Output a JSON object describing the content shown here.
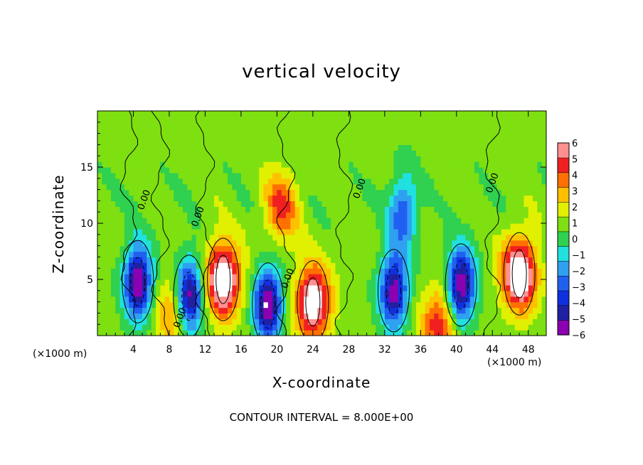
{
  "chart_data": {
    "type": "heatmap",
    "title": "vertical velocity",
    "xlabel": "X-coordinate",
    "ylabel": "Z-coordinate",
    "x_unit_left": "(×1000 m)",
    "x_unit_right": "(×1000 m)",
    "footer": "CONTOUR INTERVAL = 8.000E+00",
    "xlim": [
      0,
      50
    ],
    "ylim": [
      0,
      20
    ],
    "x_ticks": [
      "4",
      "8",
      "12",
      "16",
      "20",
      "24",
      "28",
      "32",
      "36",
      "40",
      "44",
      "48"
    ],
    "y_ticks": [
      "5",
      "10",
      "15"
    ],
    "colorbar": {
      "ticks": [
        "6",
        "5",
        "4",
        "3",
        "2",
        "1",
        "0",
        "−1",
        "−2",
        "−3",
        "−4",
        "−5",
        "−6"
      ],
      "range": [
        -6,
        6
      ],
      "colors": [
        "#8b00b0",
        "#2020a0",
        "#1030e0",
        "#2060f0",
        "#30a0f0",
        "#20e0e0",
        "#30d050",
        "#7ee010",
        "#e0f000",
        "#ffc000",
        "#ff7000",
        "#f02020",
        "#ff9090"
      ],
      "saturated_color": "#ffffff"
    },
    "contour_labels": [
      "0.00",
      "0.00",
      "0.00",
      "0.00",
      "0.00",
      "0.00",
      "0.00",
      "0.00"
    ],
    "features": [
      {
        "x": 4.5,
        "z": 4.8,
        "w": -7
      },
      {
        "x": 10.2,
        "z": 3.5,
        "w": -7
      },
      {
        "x": 14.0,
        "z": 5.0,
        "w": 7
      },
      {
        "x": 19.0,
        "z": 2.8,
        "w": -7
      },
      {
        "x": 24.0,
        "z": 3.0,
        "w": 6.5
      },
      {
        "x": 33.0,
        "z": 4.0,
        "w": -6.5
      },
      {
        "x": 40.5,
        "z": 4.5,
        "w": -7
      },
      {
        "x": 47.0,
        "z": 5.5,
        "w": 7
      },
      {
        "x": 34.0,
        "z": 11.0,
        "w": -4
      },
      {
        "x": 20.5,
        "z": 11.5,
        "w": 3.5
      },
      {
        "x": 38.0,
        "z": 1.0,
        "w": 4
      },
      {
        "x": 8.5,
        "z": 2.0,
        "w": 3
      }
    ]
  }
}
